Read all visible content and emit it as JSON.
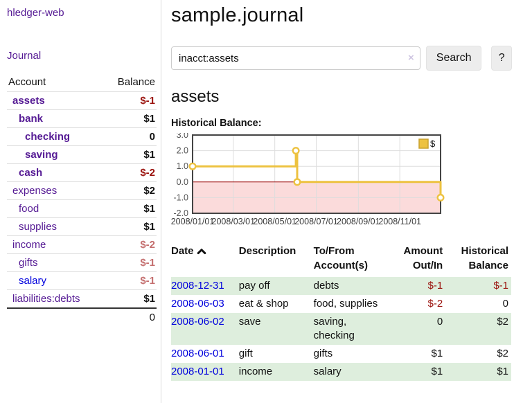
{
  "colors": {
    "purple_link": "#551a94",
    "blue_link": "#0000dd",
    "negative_strong": "#9a110c",
    "negative_soft": "#c46e6e",
    "row_green": "#deeedd",
    "series": "#edc240",
    "series_edge": "#c9a22f",
    "negative_region": "#fbdbdb",
    "zero_line": "#990000",
    "chart_border": "#444444",
    "grid_line": "#dddddd",
    "tick_text": "#545454"
  },
  "app": {
    "brand": "hledger-web",
    "nav_journal": "Journal"
  },
  "sidebar": {
    "header": {
      "account": "Account",
      "balance": "Balance"
    },
    "accounts": [
      {
        "name": "assets",
        "depth": 1,
        "balance": "$-1",
        "emphasis": true,
        "balance_tone": "danger",
        "link_tone": "visited"
      },
      {
        "name": "bank",
        "depth": 2,
        "balance": "$1",
        "emphasis": true,
        "balance_tone": "normal",
        "link_tone": "visited"
      },
      {
        "name": "checking",
        "depth": 3,
        "balance": "0",
        "emphasis": true,
        "balance_tone": "normal",
        "link_tone": "visited"
      },
      {
        "name": "saving",
        "depth": 3,
        "balance": "$1",
        "emphasis": true,
        "balance_tone": "normal",
        "link_tone": "visited"
      },
      {
        "name": "cash",
        "depth": 2,
        "balance": "$-2",
        "emphasis": true,
        "balance_tone": "danger",
        "link_tone": "visited"
      },
      {
        "name": "expenses",
        "depth": 1,
        "balance": "$2",
        "emphasis": false,
        "balance_tone": "normal",
        "link_tone": "visited"
      },
      {
        "name": "food",
        "depth": 2,
        "balance": "$1",
        "emphasis": false,
        "balance_tone": "normal",
        "link_tone": "visited"
      },
      {
        "name": "supplies",
        "depth": 2,
        "balance": "$1",
        "emphasis": false,
        "balance_tone": "normal",
        "link_tone": "visited"
      },
      {
        "name": "income",
        "depth": 1,
        "balance": "$-2",
        "emphasis": false,
        "balance_tone": "muted-danger",
        "link_tone": "visited"
      },
      {
        "name": "gifts",
        "depth": 2,
        "balance": "$-1",
        "emphasis": false,
        "balance_tone": "muted-danger",
        "link_tone": "visited"
      },
      {
        "name": "salary",
        "depth": 2,
        "balance": "$-1",
        "emphasis": false,
        "balance_tone": "muted-danger",
        "link_tone": "unvisited"
      },
      {
        "name": "liabilities:debts",
        "depth": 1,
        "balance": "$1",
        "emphasis": false,
        "balance_tone": "normal",
        "link_tone": "visited"
      }
    ],
    "total": "0"
  },
  "header": {
    "title": "sample.journal"
  },
  "search": {
    "value": "inacct:assets",
    "button": "Search",
    "help_button": "?"
  },
  "icons": {
    "search_clear": "×",
    "date_sort": "chevron-up",
    "legend_swatch": "filled-square"
  },
  "account_page": {
    "title": "assets",
    "chart_label": "Historical Balance:"
  },
  "chart_data": {
    "type": "line",
    "step": true,
    "title": "Historical Balance",
    "series": [
      {
        "name": "$",
        "points": [
          [
            "2008-01-01",
            1
          ],
          [
            "2008-06-01",
            2
          ],
          [
            "2008-06-03",
            0
          ],
          [
            "2008-12-31",
            -1
          ]
        ]
      }
    ],
    "x_range": [
      "2008-01-01",
      "2008-12-31"
    ],
    "ylim": [
      -2,
      3
    ],
    "y_ticks": [
      "3.0",
      "2.0",
      "1.0",
      "0.0",
      "-1.0",
      "-2.0"
    ],
    "x_ticks": [
      "2008/01/01",
      "2008/03/01",
      "2008/05/01",
      "2008/07/01",
      "2008/09/01",
      "2008/11/01"
    ],
    "grid": true,
    "legend": {
      "label": "$",
      "position": "top-right"
    },
    "negative_region_shaded": true
  },
  "register": {
    "columns": {
      "date": "Date",
      "description": "Description",
      "accounts": "To/From Account(s)",
      "amount": "Amount Out/In",
      "balance": "Historical Balance"
    },
    "rows": [
      {
        "date": "2008-12-31",
        "description": "pay off",
        "accounts": "debts",
        "amount": "$-1",
        "amount_negative": true,
        "balance": "$-1",
        "balance_negative": true
      },
      {
        "date": "2008-06-03",
        "description": "eat & shop",
        "accounts": "food, supplies",
        "amount": "$-2",
        "amount_negative": true,
        "balance": "0",
        "balance_negative": false
      },
      {
        "date": "2008-06-02",
        "description": "save",
        "accounts": "saving, checking",
        "amount": "0",
        "amount_negative": false,
        "balance": "$2",
        "balance_negative": false
      },
      {
        "date": "2008-06-01",
        "description": "gift",
        "accounts": "gifts",
        "amount": "$1",
        "amount_negative": false,
        "balance": "$2",
        "balance_negative": false
      },
      {
        "date": "2008-01-01",
        "description": "income",
        "accounts": "salary",
        "amount": "$1",
        "amount_negative": false,
        "balance": "$1",
        "balance_negative": false
      }
    ]
  }
}
